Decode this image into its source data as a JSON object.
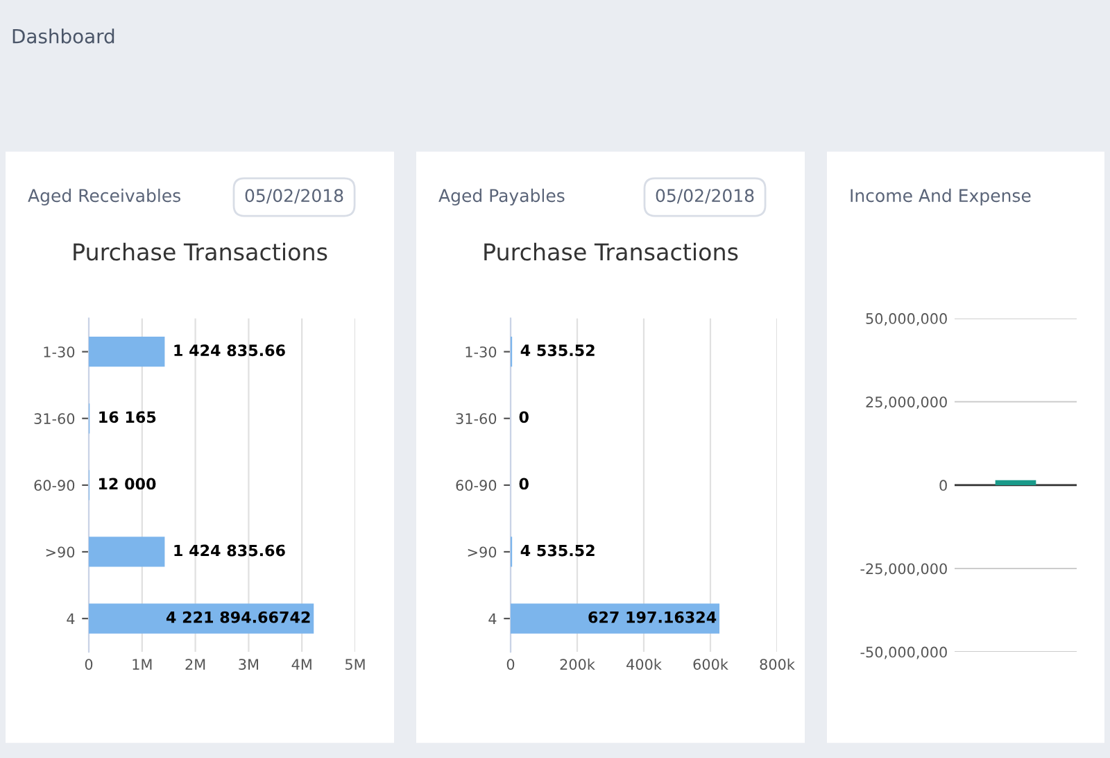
{
  "chart_data": [
    {
      "type": "bar",
      "orientation": "horizontal",
      "title": "Purchase Transactions",
      "annotations": [
        "Dashboard",
        "Aged Receivables",
        "05/02/2018"
      ],
      "categories": [
        "1-30",
        "31-60",
        "60-90",
        ">90",
        "4"
      ],
      "values": [
        1424835.66,
        16165,
        12000,
        1424835.66,
        4221894.66742
      ],
      "value_labels": [
        "1 424 835.66",
        "16 165",
        "12 000",
        "1 424 835.66",
        "4 221 894.66742"
      ],
      "color": "#7cb5ec",
      "xlim": [
        0,
        5000000
      ],
      "xticks": [
        0,
        {
          "value": 1000000,
          "label": "1M"
        },
        {
          "value": 2000000,
          "label": "2M"
        },
        {
          "value": 3000000,
          "label": "3M"
        },
        {
          "value": 4000000,
          "label": "4M"
        },
        {
          "value": 5000000,
          "label": "5M"
        }
      ],
      "grid": "x"
    },
    {
      "type": "bar",
      "orientation": "horizontal",
      "title": "Purchase Transactions",
      "annotations": [
        "Aged Payables",
        "05/02/2018"
      ],
      "categories": [
        "1-30",
        "31-60",
        "60-90",
        ">90",
        "4"
      ],
      "values": [
        4535.52,
        0,
        0,
        4535.52,
        627197.16324
      ],
      "value_labels": [
        "4 535.52",
        "0",
        "0",
        "4 535.52",
        "627 197.16324"
      ],
      "color": "#7cb5ec",
      "xlim": [
        0,
        800000
      ],
      "xticks": [
        0,
        {
          "value": 200000,
          "label": "200k"
        },
        {
          "value": 400000,
          "label": "400k"
        },
        {
          "value": 600000,
          "label": "600k"
        },
        {
          "value": 800000,
          "label": "800k"
        }
      ],
      "grid": "x"
    },
    {
      "type": "bar",
      "annotations": [
        "Income And Expense"
      ],
      "categories": [
        null
      ],
      "values": [
        1500000
      ],
      "color": "#1a9a8a",
      "ylim": [
        -50000000,
        50000000
      ],
      "yticks": [
        {
          "value": -50000000,
          "label": "-50,000,000"
        },
        {
          "value": -25000000,
          "label": "-25,000,000"
        },
        0,
        {
          "value": 25000000,
          "label": "25,000,000"
        },
        {
          "value": 50000000,
          "label": "50,000,000"
        }
      ],
      "grid": "y",
      "tick_labels": "y"
    }
  ]
}
